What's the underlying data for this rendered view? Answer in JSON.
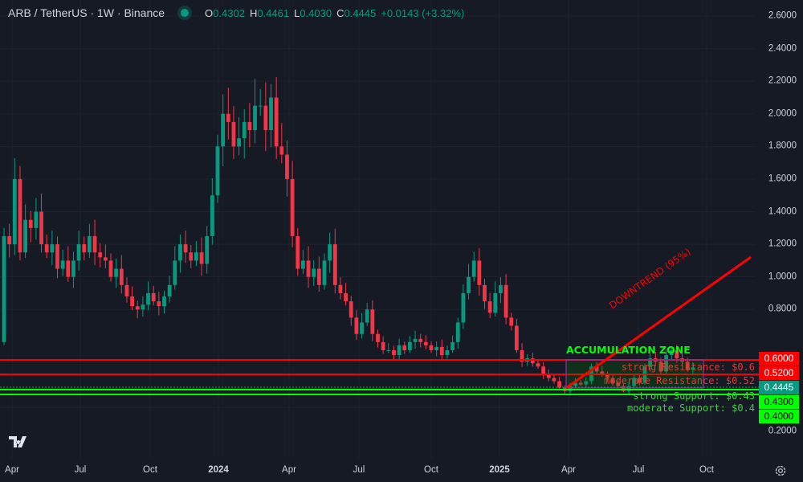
{
  "header": {
    "symbol": "ARB / TetherUS · 1W · Binance",
    "o_label": "O",
    "o": "0.4302",
    "h_label": "H",
    "h": "0.4461",
    "l_label": "L",
    "l": "0.4030",
    "c_label": "C",
    "c": "0.4445",
    "change": "+0.0143 (+3.32%)"
  },
  "colors": {
    "up": "#089981",
    "down": "#f23645",
    "resistance": "#ff0000",
    "support": "#00ff00",
    "zone_border": "#9c27b0",
    "background": "#161a25"
  },
  "chart_data": {
    "type": "candlestick",
    "interval": "1W",
    "y_ticks": [
      "2.6000",
      "2.4000",
      "2.2000",
      "2.0000",
      "1.8000",
      "1.6000",
      "1.4000",
      "1.2000",
      "1.0000",
      "0.8000",
      "0.2000"
    ],
    "ylim": [
      0.2,
      2.6
    ],
    "x_ticks": [
      {
        "label": "Apr",
        "bold": false
      },
      {
        "label": "Jul",
        "bold": false
      },
      {
        "label": "Oct",
        "bold": false
      },
      {
        "label": "2024",
        "bold": true
      },
      {
        "label": "Apr",
        "bold": false
      },
      {
        "label": "Jul",
        "bold": false
      },
      {
        "label": "Oct",
        "bold": false
      },
      {
        "label": "2025",
        "bold": true
      },
      {
        "label": "Apr",
        "bold": false
      },
      {
        "label": "Jul",
        "bold": false
      },
      {
        "label": "Oct",
        "bold": false
      }
    ],
    "first_open": 0.6,
    "closes": [
      1.25,
      1.2,
      1.6,
      1.15,
      1.35,
      1.3,
      1.4,
      1.2,
      1.15,
      1.2,
      1.05,
      1.1,
      1.0,
      1.1,
      1.2,
      1.15,
      1.25,
      1.15,
      1.12,
      1.1,
      1.0,
      1.05,
      0.95,
      0.88,
      0.82,
      0.8,
      0.83,
      0.9,
      0.85,
      0.82,
      0.88,
      0.95,
      1.1,
      1.2,
      1.15,
      1.1,
      1.15,
      1.08,
      1.25,
      1.5,
      1.8,
      2.0,
      1.95,
      1.8,
      1.85,
      1.95,
      1.9,
      2.05,
      2.05,
      1.9,
      2.1,
      1.8,
      1.75,
      1.6,
      1.25,
      1.05,
      1.1,
      1.0,
      1.05,
      0.95,
      1.1,
      1.2,
      0.95,
      0.9,
      0.85,
      0.75,
      0.65,
      0.72,
      0.8,
      0.65,
      0.6,
      0.55,
      0.55,
      0.52,
      0.58,
      0.55,
      0.6,
      0.62,
      0.6,
      0.58,
      0.55,
      0.57,
      0.52,
      0.55,
      0.6,
      0.72,
      0.9,
      1.0,
      1.1,
      0.95,
      0.85,
      0.78,
      0.9,
      0.95,
      0.75,
      0.7,
      0.55,
      0.48,
      0.5,
      0.47,
      0.45,
      0.4,
      0.38,
      0.36,
      0.32,
      0.3,
      0.33,
      0.35,
      0.34,
      0.36,
      0.45,
      0.42,
      0.4,
      0.38,
      0.35,
      0.33,
      0.3,
      0.33,
      0.38,
      0.35,
      0.45,
      0.5,
      0.48,
      0.42,
      0.52,
      0.55,
      0.5,
      0.48,
      0.43,
      0.4445
    ],
    "levels": [
      {
        "price": "0.6000",
        "label": "strong Resistance: $0.6",
        "type": "resistance"
      },
      {
        "price": "0.5200",
        "label": "moderate Resistance: $0.52",
        "type": "resistance"
      },
      {
        "price": "0.4445",
        "label": "",
        "type": "current"
      },
      {
        "price": "0.4300",
        "label": "strong Support: $0.43",
        "type": "support"
      },
      {
        "price": "0.4000",
        "label": "moderate Support: $0.4",
        "type": "support"
      }
    ],
    "annotations": {
      "zone": "ACCUMULATION ZONE",
      "trend": "DOWNTREND (95%)"
    }
  },
  "icons": {
    "logo": "tradingview-logo",
    "settings": "gear-icon"
  }
}
